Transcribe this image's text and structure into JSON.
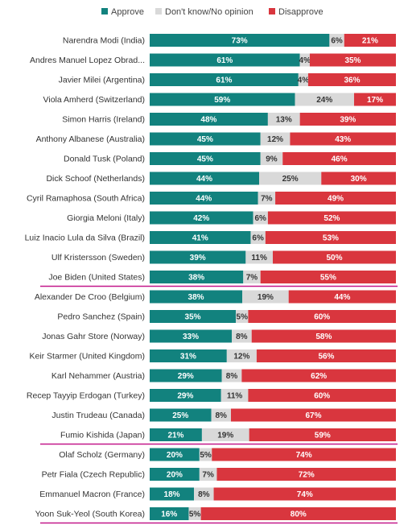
{
  "chart_data": {
    "type": "bar",
    "stacked": true,
    "orientation": "horizontal",
    "xlim": [
      0,
      100
    ],
    "legend_position": "top",
    "series": [
      {
        "name": "Approve",
        "color": "#12827e"
      },
      {
        "name": "Don't know/No opinion",
        "color": "#d9d9d9"
      },
      {
        "name": "Disapprove",
        "color": "#d9363e"
      }
    ],
    "highlight_color": "#c2188a",
    "rows": [
      {
        "label": "Narendra Modi (India)",
        "values": [
          73,
          6,
          21
        ],
        "text": [
          "73%",
          "6%",
          "21%"
        ],
        "highlight": false
      },
      {
        "label": "Andres Manuel Lopez Obrad...",
        "values": [
          61,
          4,
          35
        ],
        "text": [
          "61%",
          "4%",
          "35%"
        ],
        "highlight": false
      },
      {
        "label": "Javier Milei (Argentina)",
        "values": [
          61,
          4,
          36
        ],
        "text": [
          "61%",
          "4%",
          "36%"
        ],
        "highlight": false
      },
      {
        "label": "Viola Amherd (Switzerland)",
        "values": [
          59,
          24,
          17
        ],
        "text": [
          "59%",
          "24%",
          "17%"
        ],
        "highlight": false
      },
      {
        "label": "Simon Harris (Ireland)",
        "values": [
          48,
          13,
          39
        ],
        "text": [
          "48%",
          "13%",
          "39%"
        ],
        "highlight": false
      },
      {
        "label": "Anthony Albanese (Australia)",
        "values": [
          45,
          12,
          43
        ],
        "text": [
          "45%",
          "12%",
          "43%"
        ],
        "highlight": false
      },
      {
        "label": "Donald Tusk (Poland)",
        "values": [
          45,
          9,
          46
        ],
        "text": [
          "45%",
          "9%",
          "46%"
        ],
        "highlight": false
      },
      {
        "label": "Dick Schoof (Netherlands)",
        "values": [
          44,
          25,
          30
        ],
        "text": [
          "44%",
          "25%",
          "30%"
        ],
        "highlight": false
      },
      {
        "label": "Cyril Ramaphosa (South Africa)",
        "values": [
          44,
          7,
          49
        ],
        "text": [
          "44%",
          "7%",
          "49%"
        ],
        "highlight": false
      },
      {
        "label": "Giorgia Meloni (Italy)",
        "values": [
          42,
          6,
          52
        ],
        "text": [
          "42%",
          "6%",
          "52%"
        ],
        "highlight": false
      },
      {
        "label": "Luiz Inacio Lula da Silva (Brazil)",
        "values": [
          41,
          6,
          53
        ],
        "text": [
          "41%",
          "6%",
          "53%"
        ],
        "highlight": false
      },
      {
        "label": "Ulf Kristersson (Sweden)",
        "values": [
          39,
          11,
          50
        ],
        "text": [
          "39%",
          "11%",
          "50%"
        ],
        "highlight": false
      },
      {
        "label": "Joe Biden (United States)",
        "values": [
          38,
          7,
          55
        ],
        "text": [
          "38%",
          "7%",
          "55%"
        ],
        "highlight": true
      },
      {
        "label": "Alexander De Croo (Belgium)",
        "values": [
          38,
          19,
          44
        ],
        "text": [
          "38%",
          "19%",
          "44%"
        ],
        "highlight": false
      },
      {
        "label": "Pedro Sanchez (Spain)",
        "values": [
          35,
          5,
          60
        ],
        "text": [
          "35%",
          "5%",
          "60%"
        ],
        "highlight": false
      },
      {
        "label": "Jonas Gahr Store (Norway)",
        "values": [
          33,
          8,
          58
        ],
        "text": [
          "33%",
          "8%",
          "58%"
        ],
        "highlight": false
      },
      {
        "label": "Keir Starmer (United Kingdom)",
        "values": [
          31,
          12,
          56
        ],
        "text": [
          "31%",
          "12%",
          "56%"
        ],
        "highlight": false
      },
      {
        "label": "Karl Nehammer (Austria)",
        "values": [
          29,
          8,
          62
        ],
        "text": [
          "29%",
          "8%",
          "62%"
        ],
        "highlight": false
      },
      {
        "label": "Recep Tayyip Erdogan (Turkey)",
        "values": [
          29,
          11,
          60
        ],
        "text": [
          "29%",
          "11%",
          "60%"
        ],
        "highlight": false
      },
      {
        "label": "Justin Trudeau (Canada)",
        "values": [
          25,
          8,
          67
        ],
        "text": [
          "25%",
          "8%",
          "67%"
        ],
        "highlight": false
      },
      {
        "label": "Fumio Kishida (Japan)",
        "values": [
          21,
          19,
          59
        ],
        "text": [
          "21%",
          "19%",
          "59%"
        ],
        "highlight": true
      },
      {
        "label": "Olaf Scholz (Germany)",
        "values": [
          20,
          5,
          74
        ],
        "text": [
          "20%",
          "5%",
          "74%"
        ],
        "highlight": false
      },
      {
        "label": "Petr Fiala (Czech Republic)",
        "values": [
          20,
          7,
          72
        ],
        "text": [
          "20%",
          "7%",
          "72%"
        ],
        "highlight": false
      },
      {
        "label": "Emmanuel Macron (France)",
        "values": [
          18,
          8,
          74
        ],
        "text": [
          "18%",
          "8%",
          "74%"
        ],
        "highlight": false
      },
      {
        "label": "Yoon Suk-Yeol (South Korea)",
        "values": [
          16,
          5,
          80
        ],
        "text": [
          "16%",
          "5%",
          "80%"
        ],
        "highlight": true
      }
    ]
  }
}
